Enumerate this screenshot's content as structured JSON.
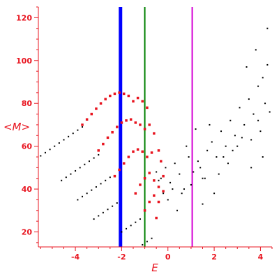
{
  "chart_data": {
    "type": "scatter",
    "title": "",
    "xlabel": "E",
    "ylabel": "<M>",
    "xlim": [
      -5.6,
      4.5
    ],
    "ylim": [
      13,
      125
    ],
    "xticks": [
      -4,
      -2,
      0,
      2,
      4
    ],
    "yticks": [
      20,
      40,
      60,
      80,
      100,
      120
    ],
    "grid": false,
    "legend": "none",
    "colors": {
      "axis": "#e8141f",
      "black_points": "#000000",
      "red_points": "#e8141f",
      "blue_line": "#0000ff",
      "green_line": "#008000",
      "magenta_line": "#d400d4"
    },
    "vertical_lines": [
      {
        "x": -2.05,
        "color": "#0000ff"
      },
      {
        "x": -1.0,
        "color": "#008000"
      },
      {
        "x": 1.05,
        "color": "#d400d4"
      }
    ],
    "series": [
      {
        "color": "black",
        "values": [
          [
            -5.5,
            55.5
          ],
          [
            -5.3,
            57.0
          ],
          [
            -5.1,
            58.5
          ],
          [
            -4.9,
            60.0
          ],
          [
            -4.7,
            61.5
          ],
          [
            -4.5,
            63.0
          ],
          [
            -4.3,
            64.5
          ],
          [
            -4.1,
            66.0
          ],
          [
            -3.9,
            67.5
          ],
          [
            -3.7,
            69.0
          ],
          [
            -4.6,
            44.0
          ],
          [
            -4.4,
            45.5
          ],
          [
            -4.2,
            47.0
          ],
          [
            -4.0,
            48.5
          ],
          [
            -3.8,
            50.0
          ],
          [
            -3.6,
            51.5
          ],
          [
            -3.4,
            53.0
          ],
          [
            -3.2,
            54.5
          ],
          [
            -3.0,
            56.0
          ],
          [
            -3.9,
            35.0
          ],
          [
            -3.7,
            36.5
          ],
          [
            -3.5,
            38.0
          ],
          [
            -3.3,
            39.5
          ],
          [
            -3.1,
            41.0
          ],
          [
            -2.9,
            42.5
          ],
          [
            -2.7,
            44.0
          ],
          [
            -2.5,
            45.5
          ],
          [
            -3.2,
            26.0
          ],
          [
            -3.0,
            27.5
          ],
          [
            -2.8,
            29.0
          ],
          [
            -2.6,
            30.5
          ],
          [
            -2.4,
            32.0
          ],
          [
            -2.2,
            33.5
          ],
          [
            -2.0,
            20.0
          ],
          [
            -1.8,
            21.5
          ],
          [
            -1.6,
            23.0
          ],
          [
            -1.4,
            24.5
          ],
          [
            -1.2,
            26.0
          ],
          [
            -1.1,
            14.0
          ],
          [
            -0.9,
            15.5
          ],
          [
            -0.7,
            17.0
          ],
          [
            -0.5,
            48.0
          ],
          [
            -0.3,
            45.0
          ],
          [
            -0.1,
            50.0
          ],
          [
            0.1,
            43.0
          ],
          [
            0.3,
            52.0
          ],
          [
            0.5,
            47.0
          ],
          [
            0.7,
            40.0
          ],
          [
            0.9,
            55.0
          ],
          [
            1.1,
            48.0
          ],
          [
            1.3,
            53.0
          ],
          [
            1.5,
            45.0
          ],
          [
            1.7,
            58.0
          ],
          [
            1.9,
            62.0
          ],
          [
            2.1,
            55.0
          ],
          [
            2.3,
            67.0
          ],
          [
            2.5,
            60.0
          ],
          [
            2.7,
            72.0
          ],
          [
            2.9,
            65.0
          ],
          [
            3.1,
            78.0
          ],
          [
            3.3,
            70.0
          ],
          [
            3.5,
            82.0
          ],
          [
            3.7,
            75.0
          ],
          [
            3.9,
            88.0
          ],
          [
            4.1,
            92.0
          ],
          [
            4.3,
            98.0
          ],
          [
            4.3,
            115.0
          ],
          [
            3.8,
            105.0
          ],
          [
            3.4,
            97.0
          ],
          [
            2.0,
            38.0
          ],
          [
            1.5,
            33.0
          ],
          [
            0.4,
            30.0
          ],
          [
            0.8,
            60.0
          ],
          [
            1.2,
            68.0
          ],
          [
            1.8,
            70.0
          ],
          [
            2.2,
            47.0
          ],
          [
            2.6,
            52.0
          ],
          [
            3.0,
            60.0
          ],
          [
            3.6,
            63.0
          ],
          [
            4.0,
            67.0
          ],
          [
            4.4,
            76.0
          ],
          [
            0.2,
            40.0
          ],
          [
            0.0,
            35.0
          ],
          [
            -0.2,
            38.0
          ],
          [
            -0.4,
            44.0
          ],
          [
            0.6,
            38.0
          ],
          [
            1.0,
            42.0
          ],
          [
            1.4,
            50.0
          ],
          [
            1.6,
            45.0
          ],
          [
            2.4,
            55.0
          ],
          [
            2.8,
            58.0
          ],
          [
            3.2,
            64.0
          ],
          [
            3.9,
            72.0
          ],
          [
            4.2,
            80.0
          ],
          [
            4.1,
            55.0
          ],
          [
            3.6,
            50.0
          ]
        ]
      },
      {
        "color": "red",
        "values": [
          [
            -3.7,
            70.0
          ],
          [
            -3.5,
            72.5
          ],
          [
            -3.3,
            75.0
          ],
          [
            -3.1,
            77.5
          ],
          [
            -2.9,
            80.0
          ],
          [
            -2.7,
            82.0
          ],
          [
            -2.5,
            83.5
          ],
          [
            -2.3,
            84.5
          ],
          [
            -2.1,
            85.0
          ],
          [
            -1.9,
            84.5
          ],
          [
            -1.7,
            83.5
          ],
          [
            -1.5,
            81.0
          ],
          [
            -1.3,
            82.5
          ],
          [
            -1.1,
            81.0
          ],
          [
            -0.9,
            78.0
          ],
          [
            -3.0,
            58.0
          ],
          [
            -2.8,
            61.0
          ],
          [
            -2.6,
            64.0
          ],
          [
            -2.4,
            66.5
          ],
          [
            -2.2,
            69.0
          ],
          [
            -2.0,
            71.0
          ],
          [
            -1.8,
            72.0
          ],
          [
            -1.6,
            72.5
          ],
          [
            -1.4,
            71.0
          ],
          [
            -1.2,
            70.0
          ],
          [
            -1.0,
            68.0
          ],
          [
            -0.8,
            70.0
          ],
          [
            -0.6,
            66.0
          ],
          [
            -2.3,
            46.0
          ],
          [
            -2.1,
            49.0
          ],
          [
            -1.9,
            52.0
          ],
          [
            -1.7,
            55.0
          ],
          [
            -1.5,
            57.5
          ],
          [
            -1.3,
            58.5
          ],
          [
            -1.1,
            57.5
          ],
          [
            -0.9,
            55.0
          ],
          [
            -0.7,
            57.0
          ],
          [
            -0.4,
            58.0
          ],
          [
            -0.3,
            53.0
          ],
          [
            -1.4,
            38.0
          ],
          [
            -1.2,
            42.0
          ],
          [
            -1.0,
            45.0
          ],
          [
            -0.8,
            47.5
          ],
          [
            -0.6,
            44.0
          ],
          [
            -0.4,
            41.0
          ],
          [
            -0.2,
            46.0
          ],
          [
            -1.0,
            30.0
          ],
          [
            -0.8,
            34.0
          ],
          [
            -0.6,
            37.0
          ],
          [
            -0.4,
            34.0
          ],
          [
            -0.2,
            39.0
          ],
          [
            -0.5,
            26.5
          ]
        ]
      }
    ]
  }
}
